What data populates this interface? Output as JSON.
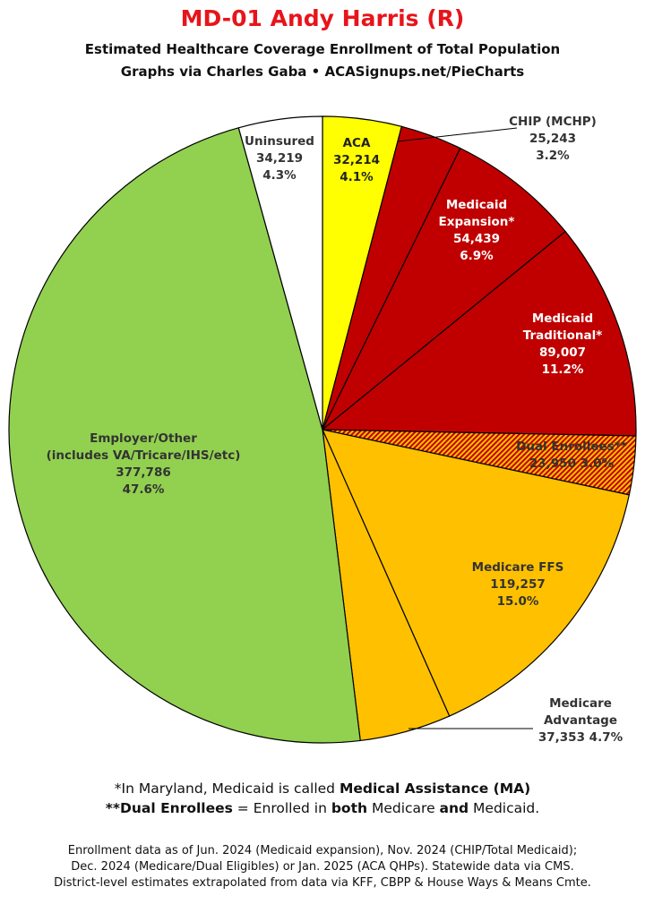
{
  "header": {
    "title": "MD-01 Andy Harris (R)",
    "subtitle": "Estimated Healthcare Coverage Enrollment of Total Population",
    "byline": "Graphs via Charles Gaba  •  ACASignups.net/PieCharts"
  },
  "chart_data": {
    "type": "pie",
    "title": "MD-01 Andy Harris (R)",
    "subtitle": "Estimated Healthcare Coverage Enrollment of Total Population",
    "start_angle": "12 o'clock, clockwise",
    "slices": [
      {
        "name": "ACA",
        "value": 32214,
        "pct": "4.1%",
        "value_label": "32,214",
        "color": "#ffff00",
        "label_lines": [
          "ACA",
          "32,214",
          "4.1%"
        ],
        "label_color": "#222222"
      },
      {
        "name": "CHIP (MCHP)",
        "value": 25243,
        "pct": "3.2%",
        "value_label": "25,243",
        "color": "#c00000",
        "label_lines": [
          "CHIP (MCHP)",
          "25,243",
          "3.2%"
        ],
        "label_color": "#333333"
      },
      {
        "name": "Medicaid Expansion*",
        "value": 54439,
        "pct": "6.9%",
        "value_label": "54,439",
        "color": "#c00000",
        "label_lines": [
          "Medicaid",
          "Expansion*",
          "54,439",
          "6.9%"
        ],
        "label_color": "#ffffff"
      },
      {
        "name": "Medicaid Traditional*",
        "value": 89007,
        "pct": "11.2%",
        "value_label": "89,007",
        "color": "#c00000",
        "label_lines": [
          "Medicaid",
          "Traditional*",
          "89,007",
          "11.2%"
        ],
        "label_color": "#ffffff"
      },
      {
        "name": "Dual Enrollees**",
        "value": 23950,
        "pct": "3.0%",
        "value_label": "23,950",
        "color": "#ffc000",
        "pattern": "hatched-red-orange",
        "label_lines": [
          "Dual Enrollees**",
          "23,950 3.0%"
        ],
        "label_color": "#333333"
      },
      {
        "name": "Medicare FFS",
        "value": 119257,
        "pct": "15.0%",
        "value_label": "119,257",
        "color": "#ffc000",
        "label_lines": [
          "Medicare FFS",
          "119,257",
          "15.0%"
        ],
        "label_color": "#333333"
      },
      {
        "name": "Medicare Advantage",
        "value": 37353,
        "pct": "4.7%",
        "value_label": "37,353",
        "color": "#ffc000",
        "label_lines": [
          "Medicare",
          "Advantage",
          "37,353 4.7%"
        ],
        "label_color": "#333333"
      },
      {
        "name": "Employer/Other (includes VA/Tricare/IHS/etc)",
        "value": 377786,
        "pct": "47.6%",
        "value_label": "377,786",
        "color": "#92d050",
        "label_lines": [
          "Employer/Other",
          "(includes VA/Tricare/IHS/etc)",
          "377,786",
          "47.6%"
        ],
        "label_color": "#333333"
      },
      {
        "name": "Uninsured",
        "value": 34219,
        "pct": "4.3%",
        "value_label": "34,219",
        "color": "#ffffff",
        "label_lines": [
          "Uninsured",
          "34,219",
          "4.3%"
        ],
        "label_color": "#333333"
      }
    ]
  },
  "footnotes": {
    "medicaid_prefix": "*In Maryland, Medicaid is called ",
    "medicaid_bold": "Medical Assistance (MA)",
    "dual_bold": "**Dual Enrollees",
    "dual_mid1": " = Enrolled in ",
    "dual_both": "both",
    "dual_mid2": " Medicare ",
    "dual_and": "and",
    "dual_end": " Medicaid."
  },
  "source": {
    "line1": "Enrollment data as of Jun. 2024 (Medicaid expansion), Nov. 2024 (CHIP/Total Medicaid);",
    "line2": "Dec. 2024 (Medicare/Dual Eligibles) or Jan. 2025 (ACA QHPs). Statewide data via CMS.",
    "line3": "District-level estimates extrapolated from data via KFF, CBPP & House Ways & Means Cmte."
  }
}
